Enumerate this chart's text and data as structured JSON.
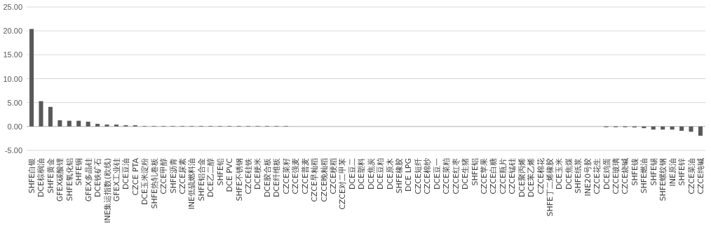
{
  "chart_data": {
    "type": "bar",
    "categories": [
      "SHFE白银",
      "DCE棕榈油",
      "SHFE黄金",
      "GFEX碳酸锂",
      "SHFE氧化铝",
      "SHFE铜",
      "GFEX多晶硅",
      "DCE铁矿石",
      "INE集运指数(欧线)",
      "GFEX工业硅",
      "DCE豆油",
      "CZCE PTA",
      "DCE玉米淀粉",
      "SHFE热轧卷板",
      "CZCE甲醇",
      "SHFE沥青",
      "CZCE尿素",
      "INE低硫燃料油",
      "SHFE铝合金",
      "DCE乙二醇",
      "SHFE铅",
      "DCE PVC",
      "SHFE不锈钢",
      "CZCE硅铁",
      "DCE粳米",
      "DCE胶合板",
      "DCE纤维板",
      "CZCE菜籽",
      "CZCE强麦",
      "CZCE普麦",
      "CZCE早籼稻",
      "CZCE晚籼稻",
      "CZCE粳稻",
      "CZCE对二甲苯",
      "DCE豆二",
      "DCE塑料",
      "DCE焦炭",
      "DCE豆粕",
      "DCE原木",
      "SHFE橡胶",
      "DCE LPG",
      "CZCE短纤",
      "CZCE棉纱",
      "DCE豆一",
      "CZCE菜粕",
      "CZCE红枣",
      "DCE生猪",
      "SHFE铝",
      "CZCE苹果",
      "CZCE白糖",
      "CZCE瓶片",
      "CZCE锰硅",
      "DCE聚丙烯",
      "DCE苯乙烯",
      "CZCE棉花",
      "SHFE丁二烯橡胶",
      "DCE玉米",
      "DCE焦煤",
      "SHFE纸浆",
      "INE20号胶",
      "CZCE花生",
      "DCE鸡蛋",
      "CZCE玻璃",
      "CZCE烧碱",
      "SHFE镍",
      "SHFE燃油",
      "SHFE锡",
      "SHFE螺纹钢",
      "INE原油",
      "SHFE锌",
      "CZCE菜油",
      "CZCE纯碱"
    ],
    "values": [
      20.4,
      5.3,
      4.1,
      1.3,
      1.2,
      1.2,
      1.0,
      0.55,
      0.4,
      0.4,
      0.25,
      0.25,
      0.1,
      0.1,
      0.1,
      0.1,
      0.1,
      0.1,
      0.1,
      0.1,
      0.1,
      0.1,
      0.1,
      0.1,
      0.1,
      0.1,
      0.1,
      0.1,
      0,
      0,
      0,
      0,
      0,
      0,
      0,
      0,
      0,
      0,
      0,
      0,
      0,
      0,
      0,
      0,
      0,
      0,
      0,
      0,
      0,
      0,
      0,
      0,
      0,
      0,
      0,
      0,
      0,
      0,
      0,
      0,
      0,
      -0.15,
      -0.15,
      -0.15,
      -0.2,
      -0.35,
      -0.65,
      -0.65,
      -0.65,
      -0.9,
      -1.1,
      -1.95
    ],
    "color": "#595959",
    "ylim": [
      -5,
      25
    ],
    "yticks": [
      {
        "value": -5,
        "label": "-5.00"
      },
      {
        "value": 0,
        "label": "0.00"
      },
      {
        "value": 5,
        "label": "5.00"
      },
      {
        "value": 10,
        "label": "10.00"
      },
      {
        "value": 15,
        "label": "15.00"
      },
      {
        "value": 20,
        "label": "20.00"
      },
      {
        "value": 25,
        "label": "25.00"
      }
    ],
    "grid": "y"
  }
}
